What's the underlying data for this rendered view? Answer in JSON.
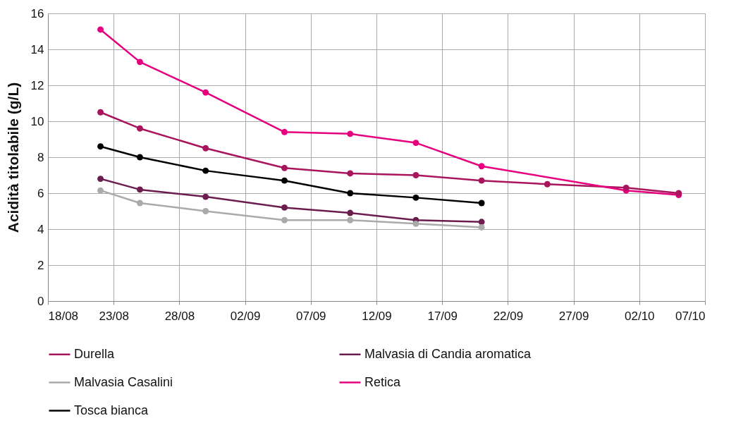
{
  "chart_data": {
    "type": "line",
    "ylabel": "Acidità titolabile (g/L)",
    "x": [
      "--08-22",
      "--08-25",
      "--08-30",
      "--09-05",
      "--09-10",
      "--09-15",
      "--09-20",
      "--09-25",
      "--10-01",
      "--10-05"
    ],
    "series": [
      {
        "name": "Durella",
        "color": "#a8155d",
        "values": [
          10.5,
          9.6,
          8.5,
          7.4,
          7.1,
          7.0,
          6.7,
          6.5,
          6.3,
          6.0
        ]
      },
      {
        "name": "Malvasia di Candia aromatica",
        "color": "#6b1d4f",
        "values": [
          6.8,
          6.2,
          5.8,
          5.2,
          4.9,
          4.5,
          4.4,
          null,
          null,
          null
        ]
      },
      {
        "name": "Malvasia Casalini",
        "color": "#aaaaaa",
        "values": [
          6.15,
          5.45,
          5.0,
          4.5,
          4.5,
          4.3,
          4.1,
          null,
          null,
          null
        ]
      },
      {
        "name": "Retica",
        "color": "#e6007e",
        "x": [
          "--08-22",
          "--08-25",
          "--08-30",
          "--09-05",
          "--09-10",
          "--09-15",
          "--09-20",
          "--10-01",
          "--10-05"
        ],
        "values": [
          15.1,
          13.3,
          11.6,
          9.4,
          9.3,
          8.8,
          7.5,
          6.15,
          5.9
        ]
      },
      {
        "name": "Tosca bianca",
        "color": "#000000",
        "values": [
          8.6,
          8.0,
          7.25,
          6.7,
          6.0,
          5.75,
          5.45,
          null,
          null,
          null
        ]
      }
    ],
    "xlim": [
      "--08-18",
      "--10-07"
    ],
    "xticks": [
      {
        "value": "--08-18",
        "label": "18/08"
      },
      {
        "value": "--08-23",
        "label": "23/08"
      },
      {
        "value": "--08-28",
        "label": "28/08"
      },
      {
        "value": "--09-02",
        "label": "02/09"
      },
      {
        "value": "--09-07",
        "label": "07/09"
      },
      {
        "value": "--09-12",
        "label": "12/09"
      },
      {
        "value": "--09-17",
        "label": "17/09"
      },
      {
        "value": "--09-22",
        "label": "22/09"
      },
      {
        "value": "--09-27",
        "label": "27/09"
      },
      {
        "value": "--10-02",
        "label": "02/10"
      },
      {
        "value": "--10-07",
        "label": "07/10"
      }
    ],
    "ylim": [
      0,
      16
    ],
    "yticks": [
      0,
      2,
      4,
      6,
      8,
      10,
      12,
      14,
      16
    ],
    "grid": true,
    "legend": "bottom",
    "marker": "circle",
    "line_style": "solid"
  }
}
